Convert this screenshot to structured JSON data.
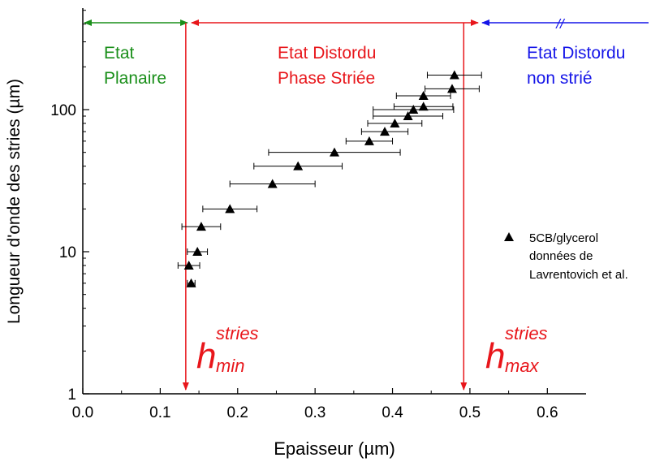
{
  "chart_data": {
    "type": "scatter",
    "xlabel": "Epaisseur (µm)",
    "ylabel": "Longueur d'onde des stries (µm)",
    "xlim": [
      0.0,
      0.65
    ],
    "ylim": [
      1,
      500
    ],
    "yscale": "log",
    "x_ticks": [
      "0.0",
      "0.1",
      "0.2",
      "0.3",
      "0.4",
      "0.5",
      "0.6"
    ],
    "y_ticks": [
      "1",
      "10",
      "100"
    ],
    "series": [
      {
        "name": "5CB/glycerol données de Lavrentovich et al.",
        "color": "#000000",
        "marker": "triangle",
        "points": [
          {
            "x": 0.14,
            "y": 6,
            "xerr": 0.005
          },
          {
            "x": 0.137,
            "y": 8,
            "xerr": 0.014
          },
          {
            "x": 0.148,
            "y": 10,
            "xerr": 0.013
          },
          {
            "x": 0.153,
            "y": 15,
            "xerr": 0.025
          },
          {
            "x": 0.19,
            "y": 20,
            "xerr": 0.035
          },
          {
            "x": 0.245,
            "y": 30,
            "xerr": 0.055
          },
          {
            "x": 0.278,
            "y": 40,
            "xerr": 0.057
          },
          {
            "x": 0.325,
            "y": 50,
            "xerr": 0.085
          },
          {
            "x": 0.37,
            "y": 60,
            "xerr": 0.03
          },
          {
            "x": 0.39,
            "y": 70,
            "xerr": 0.03
          },
          {
            "x": 0.403,
            "y": 80,
            "xerr": 0.035
          },
          {
            "x": 0.42,
            "y": 90,
            "xerr": 0.045
          },
          {
            "x": 0.427,
            "y": 100,
            "xerr": 0.052
          },
          {
            "x": 0.44,
            "y": 105,
            "xerr": 0.038
          },
          {
            "x": 0.44,
            "y": 125,
            "xerr": 0.035
          },
          {
            "x": 0.477,
            "y": 140,
            "xerr": 0.035
          },
          {
            "x": 0.48,
            "y": 175,
            "xerr": 0.035
          }
        ]
      }
    ],
    "legend": {
      "position": "right",
      "lines": [
        "5CB/glycerol",
        "données de",
        "Lavrentovich et al."
      ]
    },
    "annotations": {
      "h_min": {
        "x": 0.133,
        "base": "h",
        "sup": "stries",
        "sub": "min",
        "color": "#e8161b"
      },
      "h_max": {
        "x": 0.492,
        "base": "h",
        "sup": "stries",
        "sub": "max",
        "color": "#e8161b"
      },
      "regions": [
        {
          "lines": [
            "Etat",
            "Planaire"
          ],
          "color": "#1a8f1a"
        },
        {
          "lines": [
            "Etat Distordu",
            "Phase Striée"
          ],
          "color": "#e8161b"
        },
        {
          "lines": [
            "Etat Distordu",
            "non strié"
          ],
          "color": "#1515e8"
        }
      ],
      "break_mark": "//"
    }
  }
}
